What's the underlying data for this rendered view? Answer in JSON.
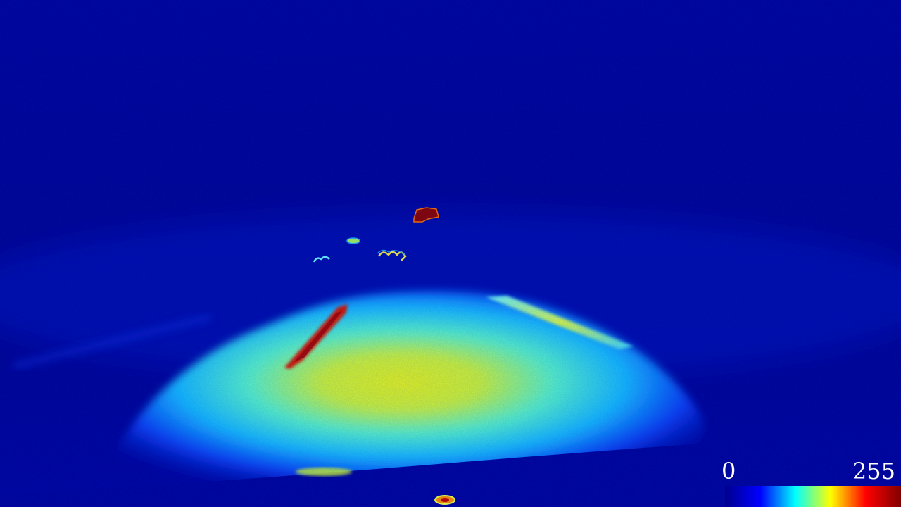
{
  "image": {
    "description_colormap": "jet",
    "colormap_stops": [
      "#00008f",
      "#0000ff",
      "#00ffff",
      "#ffff00",
      "#ff0000",
      "#800000"
    ]
  },
  "colorbar": {
    "min_label": "0",
    "max_label": "255"
  }
}
